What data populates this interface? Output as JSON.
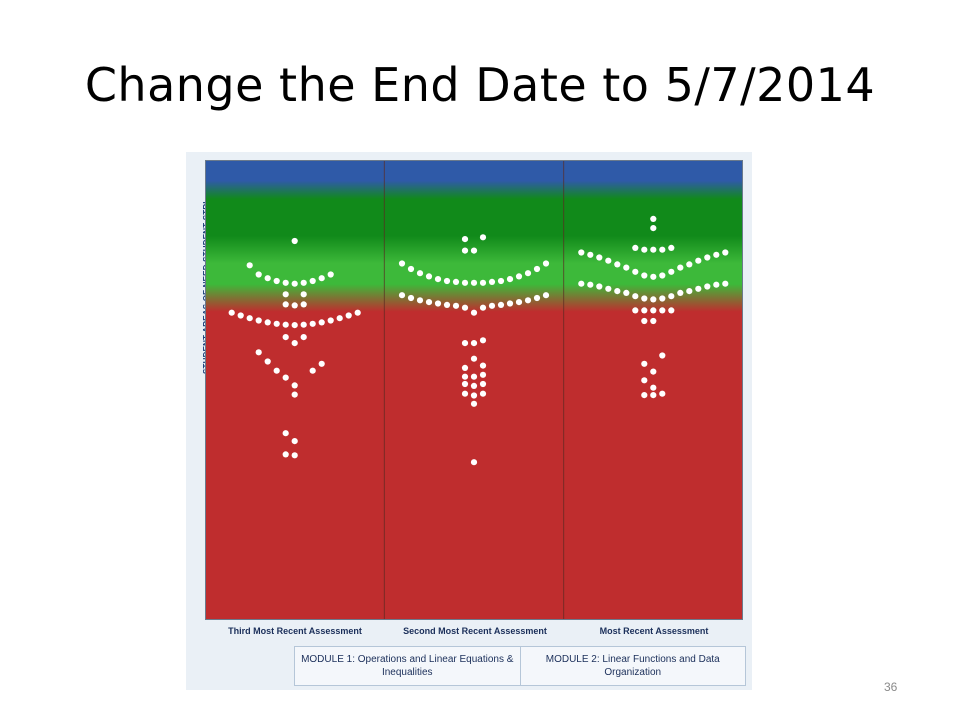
{
  "slide": {
    "title": "Change the End Date to 5/7/2014",
    "page_number": "36"
  },
  "chart_data": {
    "type": "scatter",
    "ylabel": "STUDENT AREAS OF NEED  STUDENT STRI",
    "categories": [
      "Third Most Recent Assessment",
      "Second Most Recent Assessment",
      "Most Recent Assessment"
    ],
    "modules": [
      "MODULE 1: Operations and Linear Equations & Inequalities",
      "MODULE 2: Linear Functions and Data Organization"
    ],
    "background_bands": [
      {
        "band": "top",
        "color": "#2f5aa8"
      },
      {
        "band": "strength",
        "color": "#118a1a"
      },
      {
        "band": "transition",
        "color": "#3db93a"
      },
      {
        "band": "need",
        "color": "#bf2d2e"
      }
    ],
    "colors": {
      "points": "#ffffff",
      "divider": "#5a2a22",
      "label": "#1b2f5a"
    },
    "series": [
      {
        "values": [
          [
            0,
            0.824
          ],
          [
            -0.45,
            0.771
          ],
          [
            -0.36,
            0.751
          ],
          [
            -0.27,
            0.743
          ],
          [
            -0.18,
            0.737
          ],
          [
            -0.09,
            0.733
          ],
          [
            0,
            0.731
          ],
          [
            0.09,
            0.733
          ],
          [
            0.18,
            0.737
          ],
          [
            0.27,
            0.743
          ],
          [
            0.36,
            0.751
          ],
          [
            -0.09,
            0.708
          ],
          [
            0.09,
            0.708
          ],
          [
            -0.09,
            0.686
          ],
          [
            0,
            0.684
          ],
          [
            0.09,
            0.686
          ],
          [
            -0.63,
            0.668
          ],
          [
            -0.54,
            0.662
          ],
          [
            -0.45,
            0.656
          ],
          [
            -0.36,
            0.651
          ],
          [
            -0.27,
            0.647
          ],
          [
            -0.18,
            0.644
          ],
          [
            -0.09,
            0.642
          ],
          [
            0,
            0.641
          ],
          [
            0.09,
            0.642
          ],
          [
            0.18,
            0.644
          ],
          [
            0.27,
            0.647
          ],
          [
            0.36,
            0.651
          ],
          [
            0.45,
            0.656
          ],
          [
            0.54,
            0.662
          ],
          [
            0.63,
            0.668
          ],
          [
            -0.09,
            0.615
          ],
          [
            0.09,
            0.615
          ],
          [
            0,
            0.602
          ],
          [
            -0.36,
            0.582
          ],
          [
            -0.27,
            0.562
          ],
          [
            -0.18,
            0.542
          ],
          [
            -0.09,
            0.527
          ],
          [
            0,
            0.51
          ],
          [
            0.18,
            0.542
          ],
          [
            0.27,
            0.557
          ],
          [
            0,
            0.49
          ],
          [
            -0.09,
            0.406
          ],
          [
            0,
            0.389
          ],
          [
            -0.09,
            0.36
          ],
          [
            0,
            0.358
          ]
        ]
      },
      {
        "values": [
          [
            -0.09,
            0.828
          ],
          [
            0.09,
            0.832
          ],
          [
            -0.09,
            0.803
          ],
          [
            0,
            0.803
          ],
          [
            -0.72,
            0.775
          ],
          [
            -0.63,
            0.763
          ],
          [
            -0.54,
            0.754
          ],
          [
            -0.45,
            0.747
          ],
          [
            -0.36,
            0.741
          ],
          [
            -0.27,
            0.737
          ],
          [
            -0.18,
            0.735
          ],
          [
            -0.09,
            0.733
          ],
          [
            0,
            0.733
          ],
          [
            0.09,
            0.733
          ],
          [
            0.18,
            0.735
          ],
          [
            0.27,
            0.737
          ],
          [
            0.36,
            0.741
          ],
          [
            0.45,
            0.747
          ],
          [
            0.54,
            0.754
          ],
          [
            0.63,
            0.763
          ],
          [
            0.72,
            0.775
          ],
          [
            -0.72,
            0.706
          ],
          [
            -0.63,
            0.7
          ],
          [
            -0.54,
            0.695
          ],
          [
            -0.45,
            0.691
          ],
          [
            -0.36,
            0.688
          ],
          [
            -0.27,
            0.685
          ],
          [
            -0.18,
            0.683
          ],
          [
            -0.09,
            0.679
          ],
          [
            0,
            0.668
          ],
          [
            0.09,
            0.679
          ],
          [
            0.18,
            0.683
          ],
          [
            0.27,
            0.685
          ],
          [
            0.36,
            0.688
          ],
          [
            0.45,
            0.691
          ],
          [
            0.54,
            0.695
          ],
          [
            0.63,
            0.7
          ],
          [
            0.72,
            0.706
          ],
          [
            -0.09,
            0.602
          ],
          [
            0,
            0.602
          ],
          [
            0.09,
            0.608
          ],
          [
            0,
            0.568
          ],
          [
            -0.09,
            0.548
          ],
          [
            0.09,
            0.553
          ],
          [
            -0.09,
            0.529
          ],
          [
            0,
            0.529
          ],
          [
            0.09,
            0.533
          ],
          [
            -0.09,
            0.513
          ],
          [
            0,
            0.509
          ],
          [
            0.09,
            0.513
          ],
          [
            -0.09,
            0.492
          ],
          [
            0,
            0.488
          ],
          [
            0.09,
            0.492
          ],
          [
            0,
            0.47
          ],
          [
            0,
            0.343
          ]
        ]
      },
      {
        "values": [
          [
            0,
            0.872
          ],
          [
            0,
            0.852
          ],
          [
            -0.18,
            0.809
          ],
          [
            -0.09,
            0.805
          ],
          [
            0,
            0.805
          ],
          [
            0.09,
            0.805
          ],
          [
            0.18,
            0.809
          ],
          [
            -0.72,
            0.799
          ],
          [
            -0.63,
            0.794
          ],
          [
            -0.54,
            0.788
          ],
          [
            -0.45,
            0.781
          ],
          [
            -0.36,
            0.773
          ],
          [
            -0.27,
            0.766
          ],
          [
            -0.18,
            0.757
          ],
          [
            -0.09,
            0.749
          ],
          [
            0,
            0.746
          ],
          [
            0.09,
            0.749
          ],
          [
            0.18,
            0.757
          ],
          [
            0.27,
            0.766
          ],
          [
            0.36,
            0.773
          ],
          [
            0.45,
            0.781
          ],
          [
            0.54,
            0.788
          ],
          [
            0.63,
            0.794
          ],
          [
            0.72,
            0.799
          ],
          [
            -0.72,
            0.731
          ],
          [
            -0.63,
            0.729
          ],
          [
            -0.54,
            0.725
          ],
          [
            -0.45,
            0.72
          ],
          [
            -0.36,
            0.715
          ],
          [
            -0.27,
            0.711
          ],
          [
            -0.18,
            0.704
          ],
          [
            -0.09,
            0.699
          ],
          [
            0,
            0.697
          ],
          [
            0.09,
            0.699
          ],
          [
            0.18,
            0.704
          ],
          [
            0.27,
            0.711
          ],
          [
            0.36,
            0.715
          ],
          [
            0.45,
            0.72
          ],
          [
            0.54,
            0.725
          ],
          [
            0.63,
            0.729
          ],
          [
            0.72,
            0.731
          ],
          [
            -0.18,
            0.673
          ],
          [
            -0.09,
            0.673
          ],
          [
            0,
            0.673
          ],
          [
            0.09,
            0.673
          ],
          [
            0.18,
            0.673
          ],
          [
            -0.09,
            0.65
          ],
          [
            0,
            0.65
          ],
          [
            0.09,
            0.575
          ],
          [
            -0.09,
            0.557
          ],
          [
            0,
            0.54
          ],
          [
            -0.09,
            0.521
          ],
          [
            0,
            0.505
          ],
          [
            -0.09,
            0.489
          ],
          [
            0,
            0.489
          ],
          [
            0.09,
            0.492
          ]
        ]
      }
    ]
  }
}
